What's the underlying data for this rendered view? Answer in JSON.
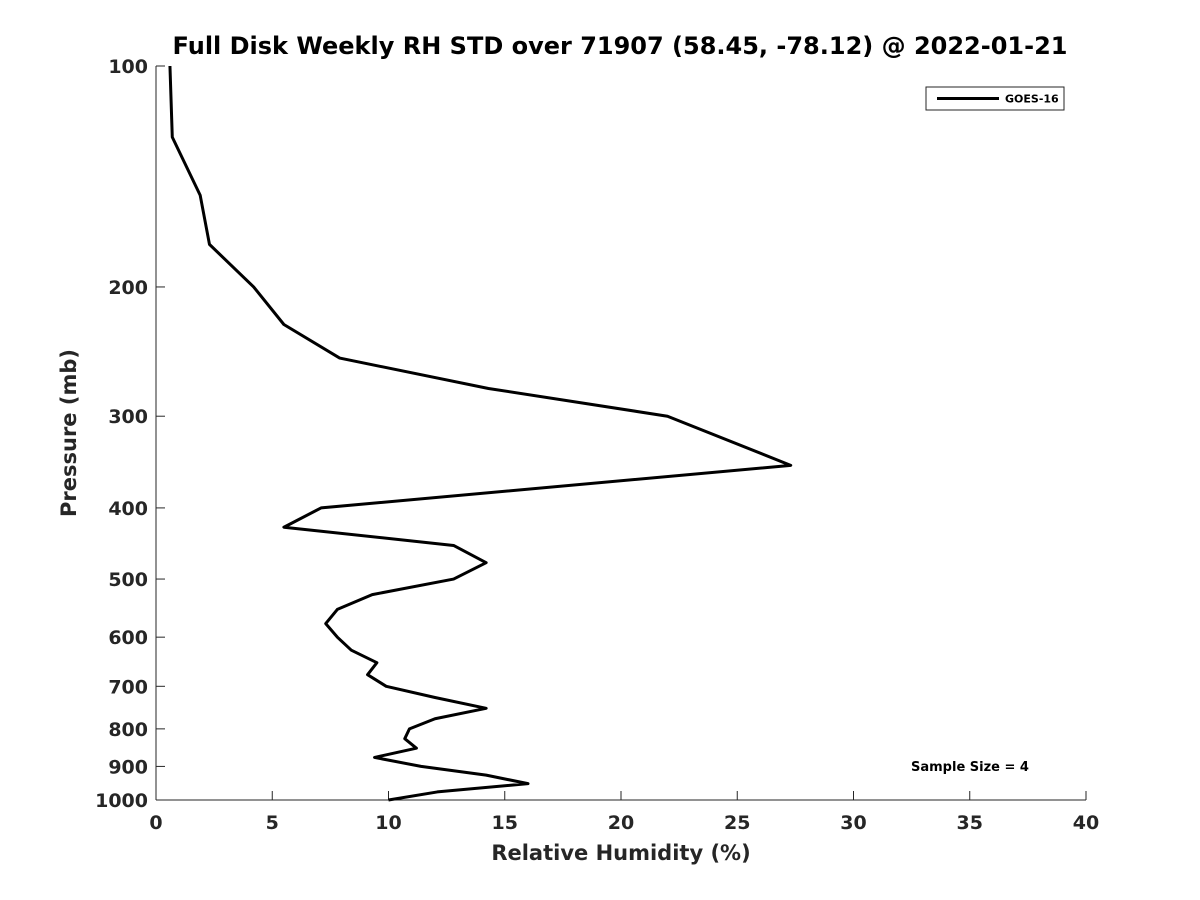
{
  "chart_data": {
    "type": "line",
    "title": "Full Disk Weekly RH STD over 71907 (58.45, -78.12) @ 2022-01-21",
    "xlabel": "Relative Humidity (%)",
    "ylabel": "Pressure (mb)",
    "xlim": [
      0,
      40
    ],
    "ylim": [
      100,
      1000
    ],
    "yscale": "log",
    "yreversed": true,
    "x_ticks": [
      0,
      5,
      10,
      15,
      20,
      25,
      30,
      35,
      40
    ],
    "y_ticks": [
      100,
      200,
      300,
      400,
      500,
      600,
      700,
      800,
      900,
      1000
    ],
    "grid": false,
    "legend_position": "top-right",
    "annotation": "Sample Size = 4",
    "series": [
      {
        "name": "GOES-16",
        "color": "#000000",
        "points": [
          {
            "rh": 0.6,
            "p": 100
          },
          {
            "rh": 0.7,
            "p": 125
          },
          {
            "rh": 1.9,
            "p": 150
          },
          {
            "rh": 2.3,
            "p": 175
          },
          {
            "rh": 4.2,
            "p": 200
          },
          {
            "rh": 5.5,
            "p": 225
          },
          {
            "rh": 7.9,
            "p": 250
          },
          {
            "rh": 14.3,
            "p": 275
          },
          {
            "rh": 22.0,
            "p": 300
          },
          {
            "rh": 27.3,
            "p": 350
          },
          {
            "rh": 7.1,
            "p": 400
          },
          {
            "rh": 5.5,
            "p": 425
          },
          {
            "rh": 12.8,
            "p": 450
          },
          {
            "rh": 14.2,
            "p": 475
          },
          {
            "rh": 12.8,
            "p": 500
          },
          {
            "rh": 9.3,
            "p": 525
          },
          {
            "rh": 7.8,
            "p": 550
          },
          {
            "rh": 7.3,
            "p": 575
          },
          {
            "rh": 7.8,
            "p": 600
          },
          {
            "rh": 8.4,
            "p": 625
          },
          {
            "rh": 9.5,
            "p": 650
          },
          {
            "rh": 9.1,
            "p": 675
          },
          {
            "rh": 9.9,
            "p": 700
          },
          {
            "rh": 12.0,
            "p": 725
          },
          {
            "rh": 14.2,
            "p": 750
          },
          {
            "rh": 12.0,
            "p": 775
          },
          {
            "rh": 10.9,
            "p": 800
          },
          {
            "rh": 10.7,
            "p": 825
          },
          {
            "rh": 11.2,
            "p": 850
          },
          {
            "rh": 9.4,
            "p": 875
          },
          {
            "rh": 11.4,
            "p": 900
          },
          {
            "rh": 14.2,
            "p": 925
          },
          {
            "rh": 16.0,
            "p": 950
          },
          {
            "rh": 12.1,
            "p": 975
          },
          {
            "rh": 10.0,
            "p": 1000
          }
        ]
      }
    ]
  }
}
